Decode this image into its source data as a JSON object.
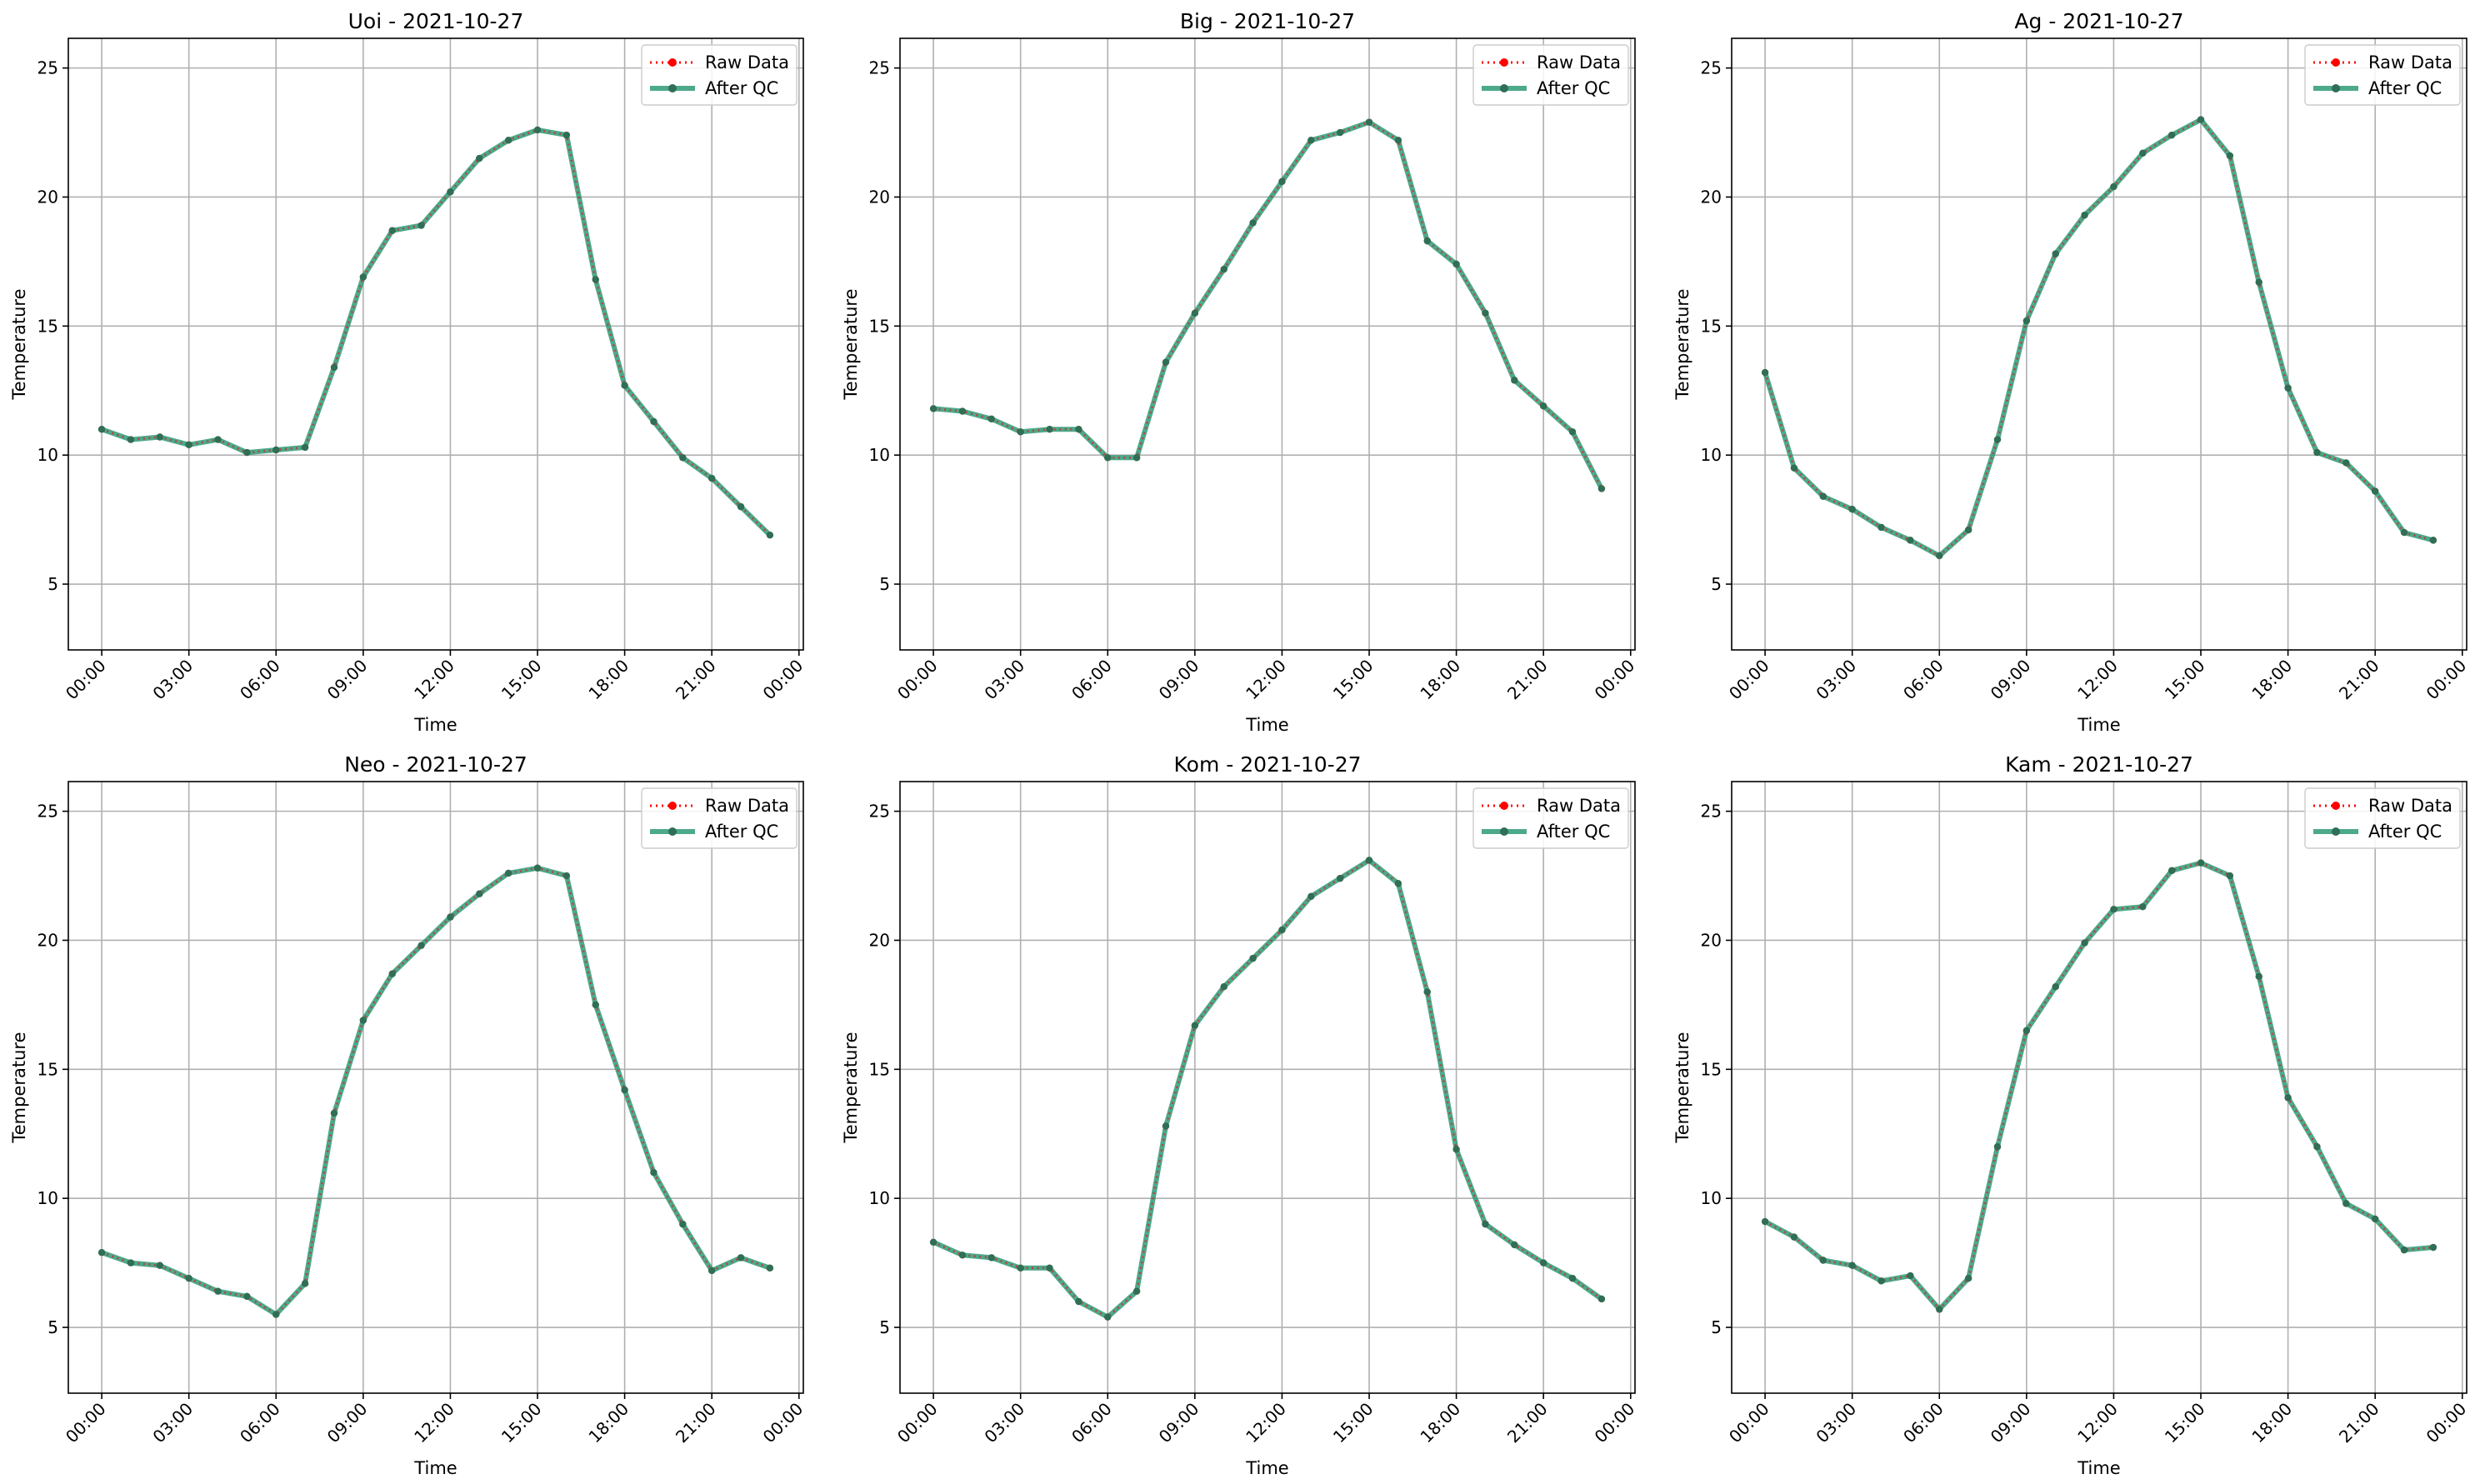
{
  "figure": {
    "background": "#ffffff"
  },
  "style": {
    "raw_color": "#ff0000",
    "qc_color": "#2e9a78",
    "qc_marker_color": "#2f6f55",
    "grid_color": "#b0b0b0"
  },
  "chart_data": [
    {
      "type": "line",
      "title": "Uoi - 2021-10-27",
      "xlabel": "Time",
      "ylabel": "Temperature",
      "xlim": [
        -1.15,
        24.15
      ],
      "ylim": [
        2.45,
        26.15
      ],
      "x_ticks": [
        0,
        3,
        6,
        9,
        12,
        15,
        18,
        21,
        24
      ],
      "x_tick_labels": [
        "00:00",
        "03:00",
        "06:00",
        "09:00",
        "12:00",
        "15:00",
        "18:00",
        "21:00",
        "00:00"
      ],
      "y_ticks": [
        5,
        10,
        15,
        20,
        25
      ],
      "y_tick_labels": [
        "5",
        "10",
        "15",
        "20",
        "25"
      ],
      "grid": true,
      "legend": {
        "location": "upper right",
        "entries": [
          "Raw Data",
          "After QC"
        ]
      },
      "x": [
        0,
        1,
        2,
        3,
        4,
        5,
        6,
        7,
        8,
        9,
        10,
        11,
        12,
        13,
        14,
        15,
        16,
        17,
        18,
        19,
        20,
        21,
        22,
        23
      ],
      "series": [
        {
          "name": "Raw Data",
          "style": "dotted",
          "values": [
            11.0,
            10.6,
            10.7,
            10.4,
            10.6,
            10.1,
            10.2,
            10.3,
            13.4,
            16.9,
            18.7,
            18.9,
            20.2,
            21.5,
            22.2,
            22.6,
            22.4,
            16.8,
            12.7,
            11.3,
            9.9,
            9.1,
            8.0,
            6.9
          ]
        },
        {
          "name": "After QC",
          "style": "solid",
          "values": [
            11.0,
            10.6,
            10.7,
            10.4,
            10.6,
            10.1,
            10.2,
            10.3,
            13.4,
            16.9,
            18.7,
            18.9,
            20.2,
            21.5,
            22.2,
            22.6,
            22.4,
            16.8,
            12.7,
            11.3,
            9.9,
            9.1,
            8.0,
            6.9
          ]
        }
      ]
    },
    {
      "type": "line",
      "title": "Big - 2021-10-27",
      "xlabel": "Time",
      "ylabel": "Temperature",
      "xlim": [
        -1.15,
        24.15
      ],
      "ylim": [
        2.45,
        26.15
      ],
      "x_ticks": [
        0,
        3,
        6,
        9,
        12,
        15,
        18,
        21,
        24
      ],
      "x_tick_labels": [
        "00:00",
        "03:00",
        "06:00",
        "09:00",
        "12:00",
        "15:00",
        "18:00",
        "21:00",
        "00:00"
      ],
      "y_ticks": [
        5,
        10,
        15,
        20,
        25
      ],
      "y_tick_labels": [
        "5",
        "10",
        "15",
        "20",
        "25"
      ],
      "grid": true,
      "legend": {
        "location": "upper right",
        "entries": [
          "Raw Data",
          "After QC"
        ]
      },
      "x": [
        0,
        1,
        2,
        3,
        4,
        5,
        6,
        7,
        8,
        9,
        10,
        11,
        12,
        13,
        14,
        15,
        16,
        17,
        18,
        19,
        20,
        21,
        22,
        23
      ],
      "series": [
        {
          "name": "Raw Data",
          "style": "dotted",
          "values": [
            11.8,
            11.7,
            11.4,
            10.9,
            11.0,
            11.0,
            9.9,
            9.9,
            13.6,
            15.5,
            17.2,
            19.0,
            20.6,
            22.2,
            22.5,
            22.9,
            22.2,
            18.3,
            17.4,
            15.5,
            12.9,
            11.9,
            10.9,
            8.7
          ]
        },
        {
          "name": "After QC",
          "style": "solid",
          "values": [
            11.8,
            11.7,
            11.4,
            10.9,
            11.0,
            11.0,
            9.9,
            9.9,
            13.6,
            15.5,
            17.2,
            19.0,
            20.6,
            22.2,
            22.5,
            22.9,
            22.2,
            18.3,
            17.4,
            15.5,
            12.9,
            11.9,
            10.9,
            8.7
          ]
        }
      ]
    },
    {
      "type": "line",
      "title": "Ag - 2021-10-27",
      "xlabel": "Time",
      "ylabel": "Temperature",
      "xlim": [
        -1.15,
        24.15
      ],
      "ylim": [
        2.45,
        26.15
      ],
      "x_ticks": [
        0,
        3,
        6,
        9,
        12,
        15,
        18,
        21,
        24
      ],
      "x_tick_labels": [
        "00:00",
        "03:00",
        "06:00",
        "09:00",
        "12:00",
        "15:00",
        "18:00",
        "21:00",
        "00:00"
      ],
      "y_ticks": [
        5,
        10,
        15,
        20,
        25
      ],
      "y_tick_labels": [
        "5",
        "10",
        "15",
        "20",
        "25"
      ],
      "grid": true,
      "legend": {
        "location": "upper right",
        "entries": [
          "Raw Data",
          "After QC"
        ]
      },
      "x": [
        0,
        1,
        2,
        3,
        4,
        5,
        6,
        7,
        8,
        9,
        10,
        11,
        12,
        13,
        14,
        15,
        16,
        17,
        18,
        19,
        20,
        21,
        22,
        23
      ],
      "series": [
        {
          "name": "Raw Data",
          "style": "dotted",
          "values": [
            13.2,
            9.5,
            8.4,
            7.9,
            7.2,
            6.7,
            6.1,
            7.1,
            10.6,
            15.2,
            17.8,
            19.3,
            20.4,
            21.7,
            22.4,
            23.0,
            21.6,
            16.7,
            12.6,
            10.1,
            9.7,
            8.6,
            7.0,
            6.7
          ]
        },
        {
          "name": "After QC",
          "style": "solid",
          "values": [
            13.2,
            9.5,
            8.4,
            7.9,
            7.2,
            6.7,
            6.1,
            7.1,
            10.6,
            15.2,
            17.8,
            19.3,
            20.4,
            21.7,
            22.4,
            23.0,
            21.6,
            16.7,
            12.6,
            10.1,
            9.7,
            8.6,
            7.0,
            6.7
          ]
        }
      ]
    },
    {
      "type": "line",
      "title": "Neo - 2021-10-27",
      "xlabel": "Time",
      "ylabel": "Temperature",
      "xlim": [
        -1.15,
        24.15
      ],
      "ylim": [
        2.45,
        26.15
      ],
      "x_ticks": [
        0,
        3,
        6,
        9,
        12,
        15,
        18,
        21,
        24
      ],
      "x_tick_labels": [
        "00:00",
        "03:00",
        "06:00",
        "09:00",
        "12:00",
        "15:00",
        "18:00",
        "21:00",
        "00:00"
      ],
      "y_ticks": [
        5,
        10,
        15,
        20,
        25
      ],
      "y_tick_labels": [
        "5",
        "10",
        "15",
        "20",
        "25"
      ],
      "grid": true,
      "legend": {
        "location": "upper right",
        "entries": [
          "Raw Data",
          "After QC"
        ]
      },
      "x": [
        0,
        1,
        2,
        3,
        4,
        5,
        6,
        7,
        8,
        9,
        10,
        11,
        12,
        13,
        14,
        15,
        16,
        17,
        18,
        19,
        20,
        21,
        22,
        23
      ],
      "series": [
        {
          "name": "Raw Data",
          "style": "dotted",
          "values": [
            7.9,
            7.5,
            7.4,
            6.9,
            6.4,
            6.2,
            5.5,
            6.7,
            13.3,
            16.9,
            18.7,
            19.8,
            20.9,
            21.8,
            22.6,
            22.8,
            22.5,
            17.5,
            14.2,
            11.0,
            9.0,
            7.2,
            7.7,
            7.3
          ]
        },
        {
          "name": "After QC",
          "style": "solid",
          "values": [
            7.9,
            7.5,
            7.4,
            6.9,
            6.4,
            6.2,
            5.5,
            6.7,
            13.3,
            16.9,
            18.7,
            19.8,
            20.9,
            21.8,
            22.6,
            22.8,
            22.5,
            17.5,
            14.2,
            11.0,
            9.0,
            7.2,
            7.7,
            7.3
          ]
        }
      ]
    },
    {
      "type": "line",
      "title": "Kom - 2021-10-27",
      "xlabel": "Time",
      "ylabel": "Temperature",
      "xlim": [
        -1.15,
        24.15
      ],
      "ylim": [
        2.45,
        26.15
      ],
      "x_ticks": [
        0,
        3,
        6,
        9,
        12,
        15,
        18,
        21,
        24
      ],
      "x_tick_labels": [
        "00:00",
        "03:00",
        "06:00",
        "09:00",
        "12:00",
        "15:00",
        "18:00",
        "21:00",
        "00:00"
      ],
      "y_ticks": [
        5,
        10,
        15,
        20,
        25
      ],
      "y_tick_labels": [
        "5",
        "10",
        "15",
        "20",
        "25"
      ],
      "grid": true,
      "legend": {
        "location": "upper right",
        "entries": [
          "Raw Data",
          "After QC"
        ]
      },
      "x": [
        0,
        1,
        2,
        3,
        4,
        5,
        6,
        7,
        8,
        9,
        10,
        11,
        12,
        13,
        14,
        15,
        16,
        17,
        18,
        19,
        20,
        21,
        22,
        23
      ],
      "series": [
        {
          "name": "Raw Data",
          "style": "dotted",
          "values": [
            8.3,
            7.8,
            7.7,
            7.3,
            7.3,
            6.0,
            5.4,
            6.4,
            12.8,
            16.7,
            18.2,
            19.3,
            20.4,
            21.7,
            22.4,
            23.1,
            22.2,
            18.0,
            11.9,
            9.0,
            8.2,
            7.5,
            6.9,
            6.1
          ]
        },
        {
          "name": "After QC",
          "style": "solid",
          "values": [
            8.3,
            7.8,
            7.7,
            7.3,
            7.3,
            6.0,
            5.4,
            6.4,
            12.8,
            16.7,
            18.2,
            19.3,
            20.4,
            21.7,
            22.4,
            23.1,
            22.2,
            18.0,
            11.9,
            9.0,
            8.2,
            7.5,
            6.9,
            6.1
          ]
        }
      ]
    },
    {
      "type": "line",
      "title": "Kam - 2021-10-27",
      "xlabel": "Time",
      "ylabel": "Temperature",
      "xlim": [
        -1.15,
        24.15
      ],
      "ylim": [
        2.45,
        26.15
      ],
      "x_ticks": [
        0,
        3,
        6,
        9,
        12,
        15,
        18,
        21,
        24
      ],
      "x_tick_labels": [
        "00:00",
        "03:00",
        "06:00",
        "09:00",
        "12:00",
        "15:00",
        "18:00",
        "21:00",
        "00:00"
      ],
      "y_ticks": [
        5,
        10,
        15,
        20,
        25
      ],
      "y_tick_labels": [
        "5",
        "10",
        "15",
        "20",
        "25"
      ],
      "grid": true,
      "legend": {
        "location": "upper right",
        "entries": [
          "Raw Data",
          "After QC"
        ]
      },
      "x": [
        0,
        1,
        2,
        3,
        4,
        5,
        6,
        7,
        8,
        9,
        10,
        11,
        12,
        13,
        14,
        15,
        16,
        17,
        18,
        19,
        20,
        21,
        22,
        23
      ],
      "series": [
        {
          "name": "Raw Data",
          "style": "dotted",
          "values": [
            9.1,
            8.5,
            7.6,
            7.4,
            6.8,
            7.0,
            5.7,
            6.9,
            12.0,
            16.5,
            18.2,
            19.9,
            21.2,
            21.3,
            22.7,
            23.0,
            22.5,
            18.6,
            13.9,
            12.0,
            9.8,
            9.2,
            8.0,
            8.1
          ]
        },
        {
          "name": "After QC",
          "style": "solid",
          "values": [
            9.1,
            8.5,
            7.6,
            7.4,
            6.8,
            7.0,
            5.7,
            6.9,
            12.0,
            16.5,
            18.2,
            19.9,
            21.2,
            21.3,
            22.7,
            23.0,
            22.5,
            18.6,
            13.9,
            12.0,
            9.8,
            9.2,
            8.0,
            8.1
          ]
        }
      ]
    }
  ]
}
